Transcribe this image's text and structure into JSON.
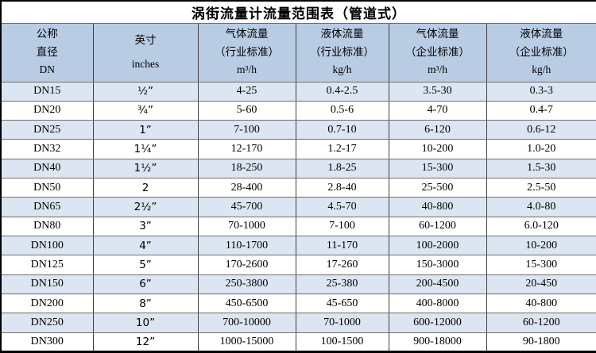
{
  "title": "涡街流量计流量范围表（管道式）",
  "colors": {
    "header_bg": "#b8cce4",
    "stripe_row_bg": "#dce6f2",
    "plain_row_bg": "#ffffff",
    "outer_border": "#000000",
    "grid_line": "#595959",
    "text": "#000000"
  },
  "table": {
    "columns": [
      {
        "id": "dn",
        "lines": [
          "公称",
          "直径",
          "DN"
        ]
      },
      {
        "id": "inches",
        "lines": [
          "英寸",
          "inches"
        ]
      },
      {
        "id": "gas-industry",
        "lines": [
          "气体流量",
          "（行业标准）",
          "m³/h"
        ]
      },
      {
        "id": "liquid-industry",
        "lines": [
          "液体流量",
          "（行业标准）",
          "kg/h"
        ]
      },
      {
        "id": "gas-enterprise",
        "lines": [
          "气体流量",
          "（企业标准）",
          "m³/h"
        ]
      },
      {
        "id": "liquid-enterprise",
        "lines": [
          "液体流量",
          "（企业标准）",
          "kg/h"
        ]
      }
    ],
    "rows": [
      [
        "DN15",
        "½”",
        "4-25",
        "0.4-2.5",
        "3.5-30",
        "0.3-3"
      ],
      [
        "DN20",
        "¾”",
        "5-60",
        "0.5-6",
        "4-70",
        "0.4-7"
      ],
      [
        "DN25",
        "1”",
        "7-100",
        "0.7-10",
        "6-120",
        "0.6-12"
      ],
      [
        "DN32",
        "1¼”",
        "12-170",
        "1.2-17",
        "10-200",
        "1.0-20"
      ],
      [
        "DN40",
        "1½”",
        "18-250",
        "1.8-25",
        "15-300",
        "1.5-30"
      ],
      [
        "DN50",
        "2",
        "28-400",
        "2.8-40",
        "25-500",
        "2.5-50"
      ],
      [
        "DN65",
        "2½”",
        "45-700",
        "4.5-70",
        "40-800",
        "4.0-80"
      ],
      [
        "DN80",
        "3”",
        "70-1000",
        "7-100",
        "60-1200",
        "6.0-120"
      ],
      [
        "DN100",
        "4”",
        "110-1700",
        "11-170",
        "100-2000",
        "10-200"
      ],
      [
        "DN125",
        "5”",
        "170-2600",
        "17-260",
        "150-3000",
        "15-300"
      ],
      [
        "DN150",
        "6”",
        "250-3800",
        "25-380",
        "200-4500",
        "20-450"
      ],
      [
        "DN200",
        "8”",
        "450-6500",
        "45-650",
        "400-8000",
        "40-800"
      ],
      [
        "DN250",
        "10”",
        "700-10000",
        "70-1000",
        "600-12000",
        "60-1200"
      ],
      [
        "DN300",
        "12”",
        "1000-15000",
        "100-1500",
        "900-18000",
        "90-1800"
      ]
    ]
  }
}
